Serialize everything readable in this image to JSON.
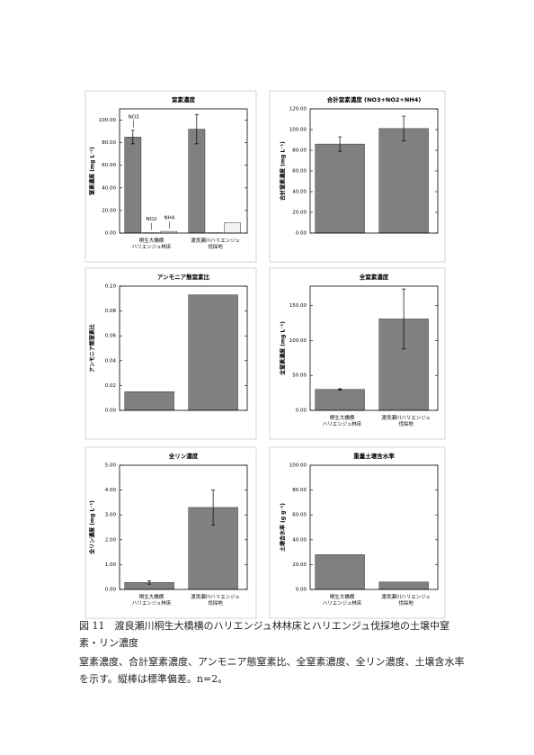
{
  "chart_data": [
    {
      "type": "bar",
      "title": "窒素濃度",
      "y_label": "窒素濃度 (mg L⁻¹)",
      "categories": [
        "桐生大橋横\nハリエンジュ林床",
        "渡良瀬川ハリエンジュ\n伐採地"
      ],
      "series": [
        {
          "name": "NO3",
          "color": "#808080",
          "values": [
            85,
            92
          ],
          "errors": [
            6,
            13
          ]
        },
        {
          "name": "NO2",
          "color": "#505050",
          "values": [
            0.3,
            0.3
          ],
          "errors": [
            null,
            null
          ]
        },
        {
          "name": "NH4",
          "color": "#f2f2f2",
          "values": [
            1.5,
            9
          ],
          "errors": [
            null,
            null
          ]
        }
      ],
      "ylim": [
        0,
        110
      ],
      "yticks": [
        {
          "value": 0,
          "label": "0.00"
        },
        {
          "value": 20,
          "label": "20.00"
        },
        {
          "value": 40,
          "label": "40.00"
        },
        {
          "value": 60,
          "label": "60.00"
        },
        {
          "value": 80,
          "label": "80.00"
        },
        {
          "value": 100,
          "label": "100.00"
        }
      ]
    },
    {
      "type": "bar",
      "title": "合計窒素濃度 (NO3+NO2+NH4)",
      "y_label": "合計窒素濃度 (mg L⁻¹)",
      "categories": [
        null,
        null
      ],
      "values": [
        86,
        101
      ],
      "errors": [
        7,
        12
      ],
      "color": "#808080",
      "ylim": [
        0,
        120
      ],
      "yticks": [
        {
          "value": 0,
          "label": "0.00"
        },
        {
          "value": 20,
          "label": "20.00"
        },
        {
          "value": 40,
          "label": "40.00"
        },
        {
          "value": 60,
          "label": "60.00"
        },
        {
          "value": 80,
          "label": "80.00"
        },
        {
          "value": 100,
          "label": "100.00"
        },
        {
          "value": 120,
          "label": "120.00"
        }
      ]
    },
    {
      "type": "bar",
      "title": "アンモニア態窒素比",
      "y_label": "アンモニア態窒素比",
      "categories": [
        null,
        null
      ],
      "values": [
        0.015,
        0.093
      ],
      "color": "#808080",
      "ylim": [
        0,
        0.1
      ],
      "yticks": [
        {
          "value": 0,
          "label": "0.00"
        },
        {
          "value": 0.02,
          "label": "0.02"
        },
        {
          "value": 0.04,
          "label": "0.04"
        },
        {
          "value": 0.06,
          "label": "0.06"
        },
        {
          "value": 0.08,
          "label": "0.08"
        },
        {
          "value": 0.1,
          "label": "0.10"
        }
      ]
    },
    {
      "type": "bar",
      "title": "全窒素濃度",
      "y_label": "全窒素濃度 (mg L⁻¹)",
      "categories": [
        "桐生大橋横\nハリエンジュ林床",
        "渡良瀬川ハリエンジュ\n伐採地"
      ],
      "values": [
        30,
        131
      ],
      "errors": [
        1,
        43
      ],
      "color": "#808080",
      "ylim": [
        0,
        178
      ],
      "yticks": [
        {
          "value": 0,
          "label": "0.00"
        },
        {
          "value": 50,
          "label": "50.00"
        },
        {
          "value": 100,
          "label": "100.00"
        },
        {
          "value": 150,
          "label": "150.00"
        }
      ]
    },
    {
      "type": "bar",
      "title": "全リン濃度",
      "y_label": "全リン濃度 (mg L⁻¹)",
      "categories": [
        "桐生大橋横\nハリエンジュ林床",
        "渡良瀬川ハリエンジュ\n伐採地"
      ],
      "values": [
        0.28,
        3.3
      ],
      "errors": [
        0.07,
        0.7
      ],
      "color": "#808080",
      "ylim": [
        0,
        5
      ],
      "yticks": [
        {
          "value": 0,
          "label": "0.00"
        },
        {
          "value": 1,
          "label": "1.00"
        },
        {
          "value": 2,
          "label": "2.00"
        },
        {
          "value": 3,
          "label": "3.00"
        },
        {
          "value": 4,
          "label": "4.00"
        },
        {
          "value": 5,
          "label": "5.00"
        }
      ]
    },
    {
      "type": "bar",
      "title": "重量土壌含水率",
      "y_label": "土壌含水率 (g g⁻¹)",
      "categories": [
        "桐生大橋横\nハリエンジュ林床",
        "渡良瀬川ハリエンジュ\n伐採地"
      ],
      "values": [
        28,
        6
      ],
      "color": "#808080",
      "ylim": [
        0,
        100
      ],
      "yticks": [
        {
          "value": 0,
          "label": "0.00"
        },
        {
          "value": 20,
          "label": "20.00"
        },
        {
          "value": 40,
          "label": "40.00"
        },
        {
          "value": 60,
          "label": "60.00"
        },
        {
          "value": 80,
          "label": "80.00"
        },
        {
          "value": 100,
          "label": "100.00"
        }
      ]
    }
  ],
  "figure_caption": {
    "title": "図 11　渡良瀬川桐生大橋横のハリエンジュ林林床とハリエンジュ伐採地の土壌中窒素・リン濃度",
    "body": "窒素濃度、合計窒素濃度、アンモニア態窒素比、全窒素濃度、全リン濃度、土壌含水率を示す。縦棒は標準偏差。n=2。"
  }
}
